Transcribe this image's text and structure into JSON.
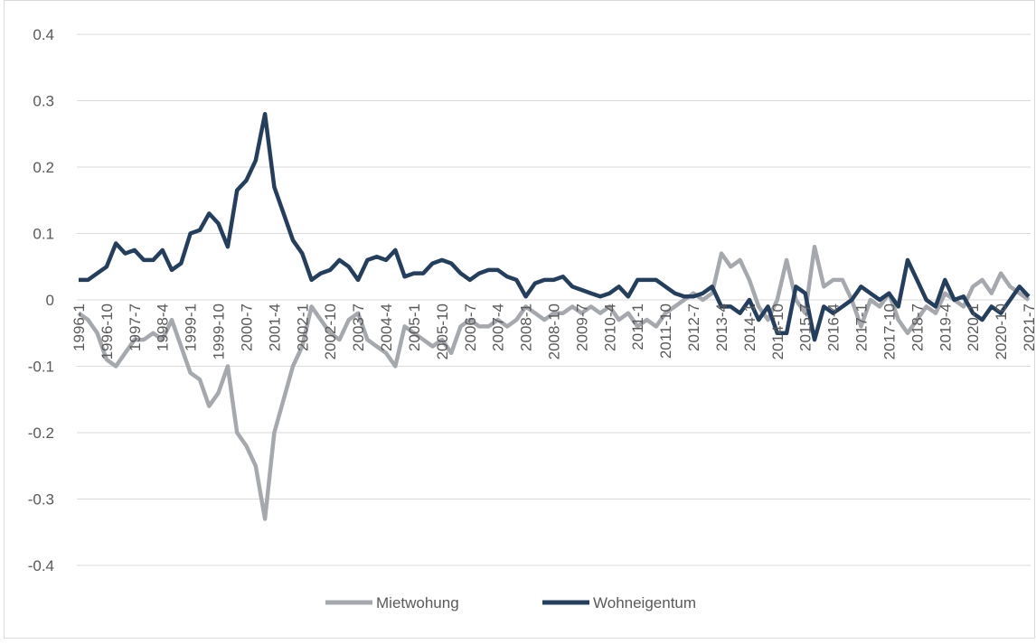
{
  "chart_data": {
    "type": "line",
    "categories": [
      "1996-1",
      null,
      null,
      "1996-10",
      null,
      null,
      "1997-7",
      null,
      null,
      "1998-4",
      null,
      null,
      "1999-1",
      null,
      null,
      "1999-10",
      null,
      null,
      "2000-7",
      null,
      null,
      "2001-4",
      null,
      null,
      "2002-1",
      null,
      null,
      "2002-10",
      null,
      null,
      "2003-7",
      null,
      null,
      "2004-4",
      null,
      null,
      "2005-1",
      null,
      null,
      "2005-10",
      null,
      null,
      "2006-7",
      null,
      null,
      "2007-4",
      null,
      null,
      "2008-1",
      null,
      null,
      "2008-10",
      null,
      null,
      "2009-7",
      null,
      null,
      "2010-4",
      null,
      null,
      "2011-1",
      null,
      null,
      "2011-10",
      null,
      null,
      "2012-7",
      null,
      null,
      "2013-4",
      null,
      null,
      "2014-1",
      null,
      null,
      "2014-10",
      null,
      null,
      "2015-7",
      null,
      null,
      "2016-4",
      null,
      null,
      "2017-1",
      null,
      null,
      "2017-10",
      null,
      null,
      "2018-7",
      null,
      null,
      "2019-4",
      null,
      null,
      "2020-1",
      null,
      null,
      "2020-10",
      null,
      null,
      "2021-7"
    ],
    "series": [
      {
        "name": "Mietwohung",
        "color": "#a5a8ad",
        "values": [
          -0.02,
          -0.03,
          -0.05,
          -0.09,
          -0.1,
          -0.08,
          -0.06,
          -0.06,
          -0.05,
          -0.06,
          -0.03,
          -0.07,
          -0.11,
          -0.12,
          -0.16,
          -0.14,
          -0.1,
          -0.2,
          -0.22,
          -0.25,
          -0.33,
          -0.2,
          -0.15,
          -0.1,
          -0.07,
          -0.01,
          -0.03,
          -0.05,
          -0.06,
          -0.03,
          -0.02,
          -0.06,
          -0.07,
          -0.08,
          -0.1,
          -0.04,
          -0.05,
          -0.06,
          -0.07,
          -0.06,
          -0.08,
          -0.04,
          -0.03,
          -0.04,
          -0.04,
          -0.03,
          -0.04,
          -0.03,
          -0.01,
          -0.02,
          -0.03,
          -0.02,
          -0.02,
          -0.01,
          -0.02,
          -0.01,
          -0.02,
          -0.01,
          -0.03,
          -0.02,
          -0.04,
          -0.03,
          -0.04,
          -0.02,
          -0.01,
          0.0,
          0.01,
          0.0,
          0.01,
          0.07,
          0.05,
          0.06,
          0.03,
          -0.01,
          -0.03,
          0.0,
          0.06,
          0.0,
          -0.02,
          0.08,
          0.02,
          0.03,
          0.03,
          0.0,
          -0.04,
          0.0,
          -0.01,
          0.01,
          -0.03,
          -0.05,
          -0.03,
          -0.01,
          -0.02,
          0.01,
          0.0,
          -0.01,
          0.02,
          0.03,
          0.01,
          0.04,
          0.02,
          0.01,
          0.0
        ]
      },
      {
        "name": "Wohneigentum",
        "color": "#243f5e",
        "values": [
          0.03,
          0.03,
          0.04,
          0.05,
          0.085,
          0.07,
          0.075,
          0.06,
          0.06,
          0.075,
          0.045,
          0.055,
          0.1,
          0.105,
          0.13,
          0.115,
          0.08,
          0.165,
          0.18,
          0.21,
          0.28,
          0.17,
          0.13,
          0.09,
          0.07,
          0.03,
          0.04,
          0.045,
          0.06,
          0.05,
          0.03,
          0.06,
          0.065,
          0.06,
          0.075,
          0.035,
          0.04,
          0.04,
          0.055,
          0.06,
          0.055,
          0.04,
          0.03,
          0.04,
          0.045,
          0.045,
          0.035,
          0.03,
          0.005,
          0.025,
          0.03,
          0.03,
          0.035,
          0.02,
          0.015,
          0.01,
          0.005,
          0.01,
          0.02,
          0.005,
          0.03,
          0.03,
          0.03,
          0.02,
          0.01,
          0.005,
          0.005,
          0.01,
          0.02,
          -0.01,
          -0.01,
          -0.02,
          0.0,
          -0.03,
          -0.01,
          -0.05,
          -0.05,
          0.02,
          0.01,
          -0.06,
          -0.01,
          -0.02,
          -0.01,
          0.0,
          0.02,
          0.01,
          0.0,
          0.01,
          -0.01,
          0.06,
          0.03,
          0.0,
          -0.01,
          0.03,
          0.0,
          0.005,
          -0.02,
          -0.03,
          -0.01,
          -0.02,
          0.0,
          0.02,
          0.005
        ]
      }
    ],
    "ylim": [
      -0.4,
      0.4
    ],
    "yticks": [
      0.4,
      0.3,
      0.2,
      0.1,
      0,
      -0.1,
      -0.2,
      -0.3,
      -0.4
    ],
    "grid": true,
    "legend": "bottom"
  }
}
